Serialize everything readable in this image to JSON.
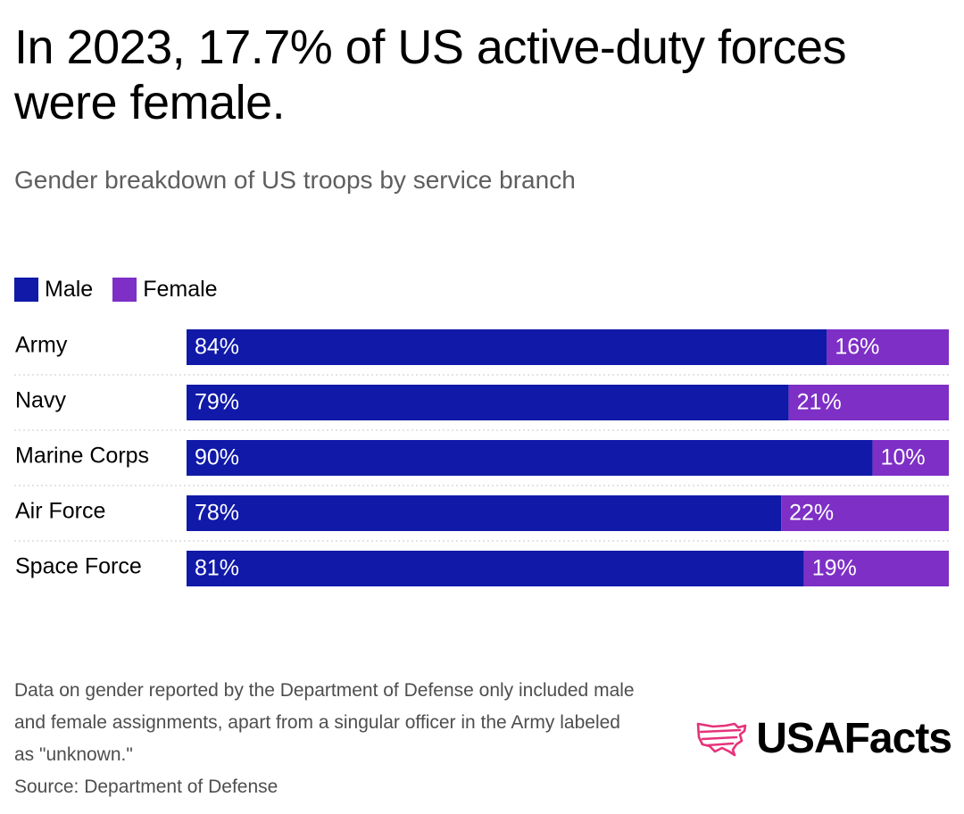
{
  "title": "In 2023, 17.7% of US active-duty forces were female.",
  "subtitle": "Gender breakdown of US troops by service branch",
  "footnote": "Data on gender reported by the Department of Defense only included male and female assignments, apart from a singular officer in the Army labeled as \"unknown.\"",
  "source": "Source: Department of Defense",
  "logo": {
    "text": "USAFacts",
    "icon": "usa-map-icon"
  },
  "colors": {
    "male": "#1019a8",
    "female": "#7e2fc6",
    "logo_accent": "#e5337a"
  },
  "chart_data": {
    "type": "bar",
    "orientation": "horizontal",
    "stacked": true,
    "normalized_percent": true,
    "title": "In 2023, 17.7% of US active-duty forces were female.",
    "subtitle": "Gender breakdown of US troops by service branch",
    "categories": [
      "Army",
      "Navy",
      "Marine Corps",
      "Air Force",
      "Space Force"
    ],
    "series": [
      {
        "name": "Male",
        "color": "#1019a8",
        "values": [
          84,
          79,
          90,
          78,
          81
        ],
        "labels": [
          "84%",
          "79%",
          "90%",
          "78%",
          "81%"
        ]
      },
      {
        "name": "Female",
        "color": "#7e2fc6",
        "values": [
          16,
          21,
          10,
          22,
          19
        ],
        "labels": [
          "16%",
          "21%",
          "10%",
          "22%",
          "19%"
        ]
      }
    ],
    "xlim": [
      0,
      100
    ],
    "xlabel": "",
    "ylabel": "",
    "grid": false,
    "legend": "top-left"
  }
}
